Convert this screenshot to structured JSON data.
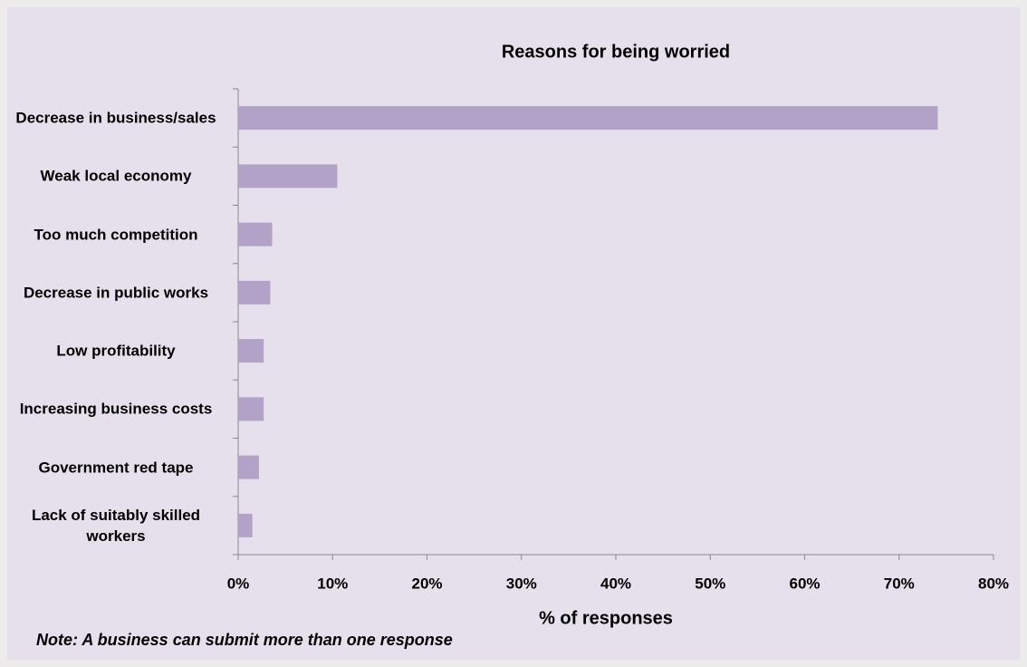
{
  "chart_data": {
    "type": "hbar",
    "title": "Reasons for being worried",
    "categories": [
      "Decrease in business/sales",
      "Weak local economy",
      "Too much competition",
      "Decrease in public works",
      "Low profitability",
      "Increasing business costs",
      "Government red tape",
      "Lack of suitably skilled workers"
    ],
    "values": [
      74.1,
      10.5,
      3.6,
      3.4,
      2.7,
      2.7,
      2.2,
      1.5
    ],
    "color": "#b3a2c7",
    "xlim": [
      0,
      80
    ],
    "xticks": [
      {
        "value": 0,
        "label": "0%"
      },
      {
        "value": 10,
        "label": "10%"
      },
      {
        "value": 20,
        "label": "20%"
      },
      {
        "value": 30,
        "label": "30%"
      },
      {
        "value": 40,
        "label": "40%"
      },
      {
        "value": 50,
        "label": "50%"
      },
      {
        "value": 60,
        "label": "60%"
      },
      {
        "value": 70,
        "label": "70%"
      },
      {
        "value": 80,
        "label": "80%"
      }
    ],
    "xlabel": "% of responses",
    "note": "Note: A business can submit more than one response"
  }
}
